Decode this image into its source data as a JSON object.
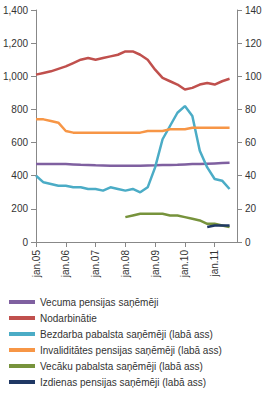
{
  "chart_data": {
    "type": "line",
    "categories": [
      "jan.05",
      null,
      null,
      null,
      "jan.06",
      null,
      null,
      null,
      "jan.07",
      null,
      null,
      null,
      "jan.08",
      null,
      null,
      null,
      "jan.09",
      null,
      null,
      null,
      "jan.10",
      null,
      null,
      null,
      "jan.11",
      null,
      null,
      null
    ],
    "ylim": [
      0,
      1400
    ],
    "yticks": [
      0,
      200,
      400,
      600,
      800,
      1000,
      1200,
      1400
    ],
    "y2lim": [
      0,
      140
    ],
    "y2ticks": [
      0,
      20,
      40,
      60,
      80,
      100,
      120,
      140
    ],
    "grid": false,
    "legend": "bottom",
    "series": [
      {
        "name": "Vecuma pensijas saņēmēji",
        "color": "#7f60a0",
        "values": [
          470,
          470,
          470,
          470,
          470,
          468,
          466,
          465,
          463,
          462,
          460,
          460,
          460,
          460,
          460,
          462,
          463,
          465,
          465,
          466,
          468,
          470,
          470,
          472,
          474,
          476,
          478,
          null
        ]
      },
      {
        "name": "Nodarbinātie",
        "color": "#c0504d",
        "values": [
          1010,
          1020,
          1030,
          1045,
          1060,
          1080,
          1100,
          1110,
          1100,
          1110,
          1120,
          1130,
          1150,
          1150,
          1130,
          1100,
          1040,
          990,
          970,
          950,
          920,
          930,
          950,
          960,
          950,
          970,
          985,
          null
        ]
      },
      {
        "name": "Bezdarba pabalsta saņēmēji (labā ass)",
        "color": "#4bacc6",
        "axis": "y2",
        "values": [
          40,
          36,
          35,
          34,
          34,
          33,
          33,
          32,
          32,
          31,
          33,
          32,
          31,
          32,
          30,
          33,
          45,
          62,
          70,
          78,
          82,
          76,
          55,
          45,
          38,
          37,
          32,
          null
        ]
      },
      {
        "name": "Invaliditātes pensijas saņēmēji (labā ass)",
        "color": "#f79646",
        "axis": "y2",
        "values": [
          74,
          74,
          73,
          72,
          67,
          66,
          66,
          66,
          66,
          66,
          66,
          66,
          66,
          66,
          66,
          67,
          67,
          67,
          68,
          68,
          68,
          69,
          69,
          69,
          69,
          69,
          69,
          null
        ]
      },
      {
        "name": "Vecāku pabalsta saņēmēji (labā ass)",
        "color": "#77933c",
        "axis": "y2",
        "values": [
          null,
          null,
          null,
          null,
          null,
          null,
          null,
          null,
          null,
          null,
          null,
          null,
          15,
          16,
          17,
          17,
          17,
          17,
          16,
          16,
          15,
          14,
          13,
          11,
          11,
          10,
          9,
          null
        ]
      },
      {
        "name": "Izdienas pensijas saņēmēji (labā ass)",
        "color": "#1f3864",
        "axis": "y2",
        "values": [
          null,
          null,
          null,
          null,
          null,
          null,
          null,
          null,
          null,
          null,
          null,
          null,
          null,
          null,
          null,
          null,
          null,
          null,
          null,
          null,
          null,
          null,
          null,
          9,
          10,
          10,
          10,
          null
        ]
      }
    ]
  }
}
